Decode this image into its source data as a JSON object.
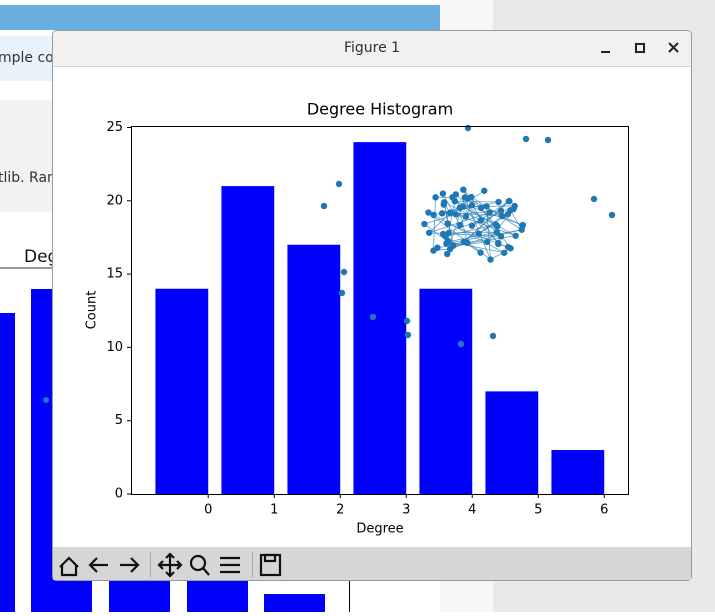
{
  "background": {
    "texts": [
      "mple co",
      "tlib. Ran",
      "Deg"
    ]
  },
  "window": {
    "title": "Figure 1"
  },
  "chart_data": {
    "type": "bar",
    "title": "Degree Histogram",
    "x_label": "Degree",
    "y_label": "Count",
    "x": [
      -0.4,
      0.6,
      1.6,
      2.6,
      3.6,
      4.6,
      5.6
    ],
    "values": [
      14,
      21,
      17,
      24,
      14,
      7,
      3
    ],
    "bar_width": 0.8,
    "color": "#0000ff",
    "xlim": [
      -1.17,
      6.36
    ],
    "xticks": [
      0,
      1,
      2,
      3,
      4,
      5,
      6
    ],
    "ylim": [
      0,
      25.1
    ],
    "yticks": [
      0,
      5,
      10,
      15,
      20,
      25
    ],
    "grid": false
  }
}
